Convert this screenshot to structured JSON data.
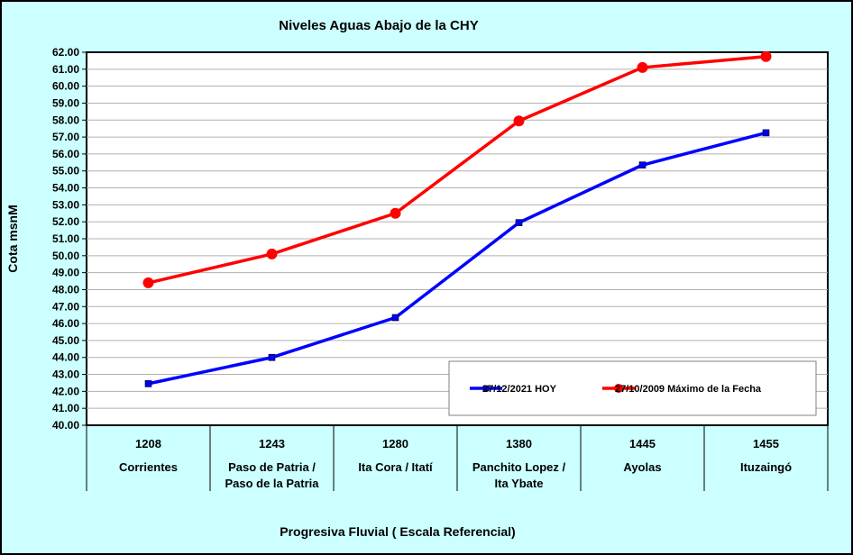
{
  "chart_data": {
    "type": "line",
    "title": "Niveles Aguas Abajo de la CHY",
    "ylabel": "Cota msnM",
    "xlabel": "Progresiva Fluvial ( Escala Referencial)",
    "ylim": [
      40,
      62
    ],
    "ytick_step": 1,
    "grid": true,
    "legend_position": "bottom-right",
    "categories": [
      {
        "progresiva": "1208",
        "name": [
          "Corrientes"
        ]
      },
      {
        "progresiva": "1243",
        "name": [
          "Paso de Patria /",
          "Paso de la Patria"
        ]
      },
      {
        "progresiva": "1280",
        "name": [
          "Ita Cora / Itatí"
        ]
      },
      {
        "progresiva": "1380",
        "name": [
          "Panchito Lopez /",
          "Ita Ybate"
        ]
      },
      {
        "progresiva": "1445",
        "name": [
          "Ayolas"
        ]
      },
      {
        "progresiva": "1455",
        "name": [
          "Ituzaingó"
        ]
      }
    ],
    "series": [
      {
        "name": "27/12/2021 HOY",
        "color": "#0000ff",
        "marker": "square",
        "values": [
          42.45,
          44.0,
          46.35,
          51.95,
          55.35,
          57.25
        ]
      },
      {
        "name": "27/10/2009 Máximo de la Fecha",
        "color": "#ff0000",
        "marker": "circle",
        "values": [
          48.4,
          50.1,
          52.5,
          57.95,
          61.1,
          61.75
        ]
      }
    ]
  }
}
